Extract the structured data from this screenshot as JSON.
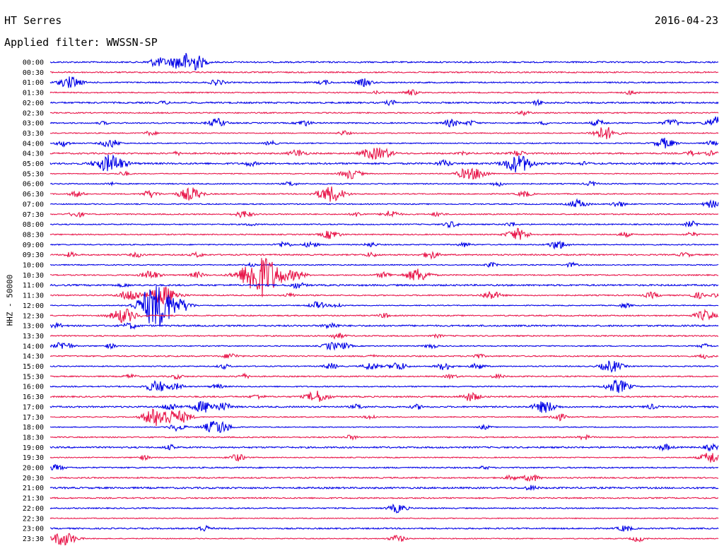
{
  "header": {
    "station": "HT Serres",
    "date": "2016-04-23",
    "filter": "Applied filter: WWSSN-SP"
  },
  "chart_data": {
    "type": "line",
    "chart_kind": "helicorder",
    "ylabel": "HHZ - 50000",
    "colors": {
      "odd_row": "#0000e6",
      "even_row": "#e8164a"
    },
    "grid": false,
    "rows": [
      {
        "time": "00:00",
        "events": [
          [
            0.16,
            6
          ],
          [
            0.2,
            12
          ],
          [
            0.22,
            6
          ]
        ]
      },
      {
        "time": "00:30",
        "events": []
      },
      {
        "time": "01:00",
        "events": [
          [
            0.03,
            8
          ],
          [
            0.25,
            4
          ],
          [
            0.41,
            3
          ],
          [
            0.47,
            5
          ]
        ]
      },
      {
        "time": "01:30",
        "events": [
          [
            0.49,
            2
          ],
          [
            0.54,
            4
          ],
          [
            0.87,
            3
          ]
        ]
      },
      {
        "time": "02:00",
        "events": [
          [
            0.17,
            2
          ],
          [
            0.51,
            3
          ],
          [
            0.73,
            3
          ]
        ]
      },
      {
        "time": "02:30",
        "events": [
          [
            0.71,
            3
          ]
        ]
      },
      {
        "time": "03:00",
        "events": [
          [
            0.08,
            2
          ],
          [
            0.25,
            6
          ],
          [
            0.38,
            4
          ],
          [
            0.6,
            5
          ],
          [
            0.63,
            3
          ],
          [
            0.74,
            2
          ],
          [
            0.82,
            4
          ],
          [
            0.93,
            5
          ],
          [
            1.0,
            9
          ]
        ]
      },
      {
        "time": "03:30",
        "events": [
          [
            0.15,
            3
          ],
          [
            0.44,
            3
          ],
          [
            0.83,
            9
          ]
        ]
      },
      {
        "time": "04:00",
        "events": [
          [
            0.02,
            4
          ],
          [
            0.09,
            6
          ],
          [
            0.33,
            3
          ],
          [
            0.92,
            7
          ],
          [
            0.99,
            3
          ]
        ]
      },
      {
        "time": "04:30",
        "events": [
          [
            0.19,
            2
          ],
          [
            0.37,
            5
          ],
          [
            0.48,
            7
          ],
          [
            0.5,
            6
          ],
          [
            0.62,
            2
          ],
          [
            0.7,
            4
          ],
          [
            0.96,
            3
          ],
          [
            0.99,
            3
          ]
        ]
      },
      {
        "time": "05:00",
        "events": [
          [
            0.09,
            12
          ],
          [
            0.3,
            3
          ],
          [
            0.59,
            4
          ],
          [
            0.7,
            12
          ],
          [
            0.8,
            2
          ]
        ]
      },
      {
        "time": "05:30",
        "events": [
          [
            0.11,
            3
          ],
          [
            0.45,
            7
          ],
          [
            0.62,
            6
          ],
          [
            0.64,
            7
          ]
        ]
      },
      {
        "time": "06:00",
        "events": [
          [
            0.09,
            2
          ],
          [
            0.36,
            3
          ],
          [
            0.67,
            3
          ],
          [
            0.81,
            3
          ]
        ]
      },
      {
        "time": "06:30",
        "events": [
          [
            0.04,
            4
          ],
          [
            0.15,
            5
          ],
          [
            0.21,
            9
          ],
          [
            0.42,
            11
          ],
          [
            0.71,
            4
          ]
        ]
      },
      {
        "time": "07:00",
        "events": [
          [
            0.79,
            6
          ],
          [
            0.85,
            4
          ],
          [
            0.99,
            5
          ]
        ]
      },
      {
        "time": "07:30",
        "events": [
          [
            0.04,
            4
          ],
          [
            0.29,
            5
          ],
          [
            0.46,
            3
          ],
          [
            0.51,
            5
          ],
          [
            0.58,
            3
          ]
        ]
      },
      {
        "time": "08:00",
        "events": [
          [
            0.3,
            2
          ],
          [
            0.6,
            4
          ],
          [
            0.69,
            3
          ],
          [
            0.96,
            4
          ]
        ]
      },
      {
        "time": "08:30",
        "events": [
          [
            0.42,
            6
          ],
          [
            0.7,
            8
          ],
          [
            0.86,
            3
          ],
          [
            0.96,
            3
          ]
        ]
      },
      {
        "time": "09:00",
        "events": [
          [
            0.35,
            4
          ],
          [
            0.39,
            4
          ],
          [
            0.48,
            3
          ],
          [
            0.62,
            3
          ],
          [
            0.76,
            6
          ]
        ]
      },
      {
        "time": "09:30",
        "events": [
          [
            0.03,
            3
          ],
          [
            0.13,
            3
          ],
          [
            0.22,
            3
          ],
          [
            0.48,
            3
          ],
          [
            0.57,
            5
          ],
          [
            0.95,
            3
          ]
        ]
      },
      {
        "time": "10:00",
        "events": [
          [
            0.3,
            2
          ],
          [
            0.66,
            3
          ],
          [
            0.78,
            3
          ]
        ]
      },
      {
        "time": "10:30",
        "events": [
          [
            0.15,
            6
          ],
          [
            0.22,
            4
          ],
          [
            0.31,
            12
          ],
          [
            0.32,
            20
          ],
          [
            0.37,
            5
          ],
          [
            0.5,
            4
          ],
          [
            0.55,
            9
          ]
        ]
      },
      {
        "time": "11:00",
        "events": [
          [
            0.11,
            2
          ],
          [
            0.37,
            4
          ]
        ]
      },
      {
        "time": "11:30",
        "events": [
          [
            0.12,
            8
          ],
          [
            0.17,
            12
          ],
          [
            0.36,
            3
          ],
          [
            0.66,
            6
          ],
          [
            0.9,
            4
          ],
          [
            0.97,
            4
          ],
          [
            1.0,
            3
          ]
        ]
      },
      {
        "time": "12:00",
        "events": [
          [
            0.15,
            10
          ],
          [
            0.16,
            16
          ],
          [
            0.17,
            10
          ],
          [
            0.2,
            6
          ],
          [
            0.4,
            5
          ],
          [
            0.43,
            3
          ],
          [
            0.86,
            3
          ]
        ]
      },
      {
        "time": "12:30",
        "events": [
          [
            0.11,
            10
          ],
          [
            0.5,
            3
          ],
          [
            0.98,
            7
          ]
        ]
      },
      {
        "time": "13:00",
        "events": [
          [
            0.01,
            3
          ],
          [
            0.12,
            4
          ],
          [
            0.42,
            4
          ]
        ]
      },
      {
        "time": "13:30",
        "events": [
          [
            0.43,
            4
          ],
          [
            0.58,
            2
          ]
        ]
      },
      {
        "time": "14:00",
        "events": [
          [
            0.02,
            6
          ],
          [
            0.09,
            3
          ],
          [
            0.42,
            5
          ],
          [
            0.44,
            4
          ],
          [
            0.57,
            3
          ],
          [
            0.98,
            3
          ]
        ]
      },
      {
        "time": "14:30",
        "events": [
          [
            0.27,
            4
          ],
          [
            0.48,
            2
          ],
          [
            0.64,
            3
          ],
          [
            0.98,
            3
          ]
        ]
      },
      {
        "time": "15:00",
        "events": [
          [
            0.26,
            3
          ],
          [
            0.42,
            4
          ],
          [
            0.48,
            5
          ],
          [
            0.52,
            6
          ],
          [
            0.59,
            5
          ],
          [
            0.64,
            4
          ],
          [
            0.84,
            8
          ]
        ]
      },
      {
        "time": "15:30",
        "events": [
          [
            0.12,
            3
          ],
          [
            0.19,
            3
          ],
          [
            0.29,
            3
          ],
          [
            0.6,
            3
          ],
          [
            0.67,
            3
          ]
        ]
      },
      {
        "time": "16:00",
        "events": [
          [
            0.16,
            8
          ],
          [
            0.19,
            4
          ],
          [
            0.25,
            3
          ],
          [
            0.85,
            9
          ]
        ]
      },
      {
        "time": "16:30",
        "events": [
          [
            0.31,
            3
          ],
          [
            0.4,
            8
          ],
          [
            0.63,
            6
          ]
        ]
      },
      {
        "time": "17:00",
        "events": [
          [
            0.18,
            5
          ],
          [
            0.23,
            8
          ],
          [
            0.26,
            5
          ],
          [
            0.46,
            3
          ],
          [
            0.55,
            3
          ],
          [
            0.74,
            8
          ],
          [
            0.9,
            3
          ]
        ]
      },
      {
        "time": "17:30",
        "events": [
          [
            0.15,
            6
          ],
          [
            0.17,
            12
          ],
          [
            0.2,
            6
          ],
          [
            0.48,
            3
          ],
          [
            0.76,
            5
          ]
        ]
      },
      {
        "time": "18:00",
        "events": [
          [
            0.19,
            5
          ],
          [
            0.25,
            10
          ],
          [
            0.65,
            3
          ]
        ]
      },
      {
        "time": "18:30",
        "events": [
          [
            0.45,
            3
          ],
          [
            0.8,
            3
          ]
        ]
      },
      {
        "time": "19:00",
        "events": [
          [
            0.18,
            3
          ],
          [
            0.92,
            4
          ],
          [
            0.99,
            4
          ]
        ]
      },
      {
        "time": "19:30",
        "events": [
          [
            0.14,
            3
          ],
          [
            0.28,
            5
          ],
          [
            0.99,
            8
          ]
        ]
      },
      {
        "time": "20:00",
        "events": [
          [
            0.01,
            4
          ],
          [
            0.65,
            2
          ]
        ]
      },
      {
        "time": "20:30",
        "events": [
          [
            0.69,
            3
          ],
          [
            0.72,
            5
          ]
        ]
      },
      {
        "time": "21:00",
        "events": [
          [
            0.72,
            3
          ]
        ]
      },
      {
        "time": "21:30",
        "events": []
      },
      {
        "time": "22:00",
        "events": [
          [
            0.52,
            6
          ]
        ]
      },
      {
        "time": "22:30",
        "events": []
      },
      {
        "time": "23:00",
        "events": [
          [
            0.23,
            4
          ],
          [
            0.86,
            4
          ]
        ]
      },
      {
        "time": "23:30",
        "events": [
          [
            0.02,
            10
          ],
          [
            0.52,
            5
          ],
          [
            0.88,
            4
          ]
        ]
      }
    ]
  }
}
